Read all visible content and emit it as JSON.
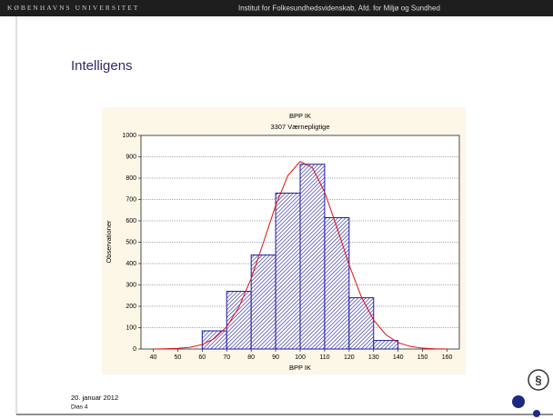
{
  "header": {
    "university": "KØBENHAVNS UNIVERSITET",
    "institute": "Institut for Folkesundhedsvidenskab, Afd. for Miljø og Sundhed"
  },
  "slide_title": "Intelligens",
  "footer": {
    "date": "20. januar 2012",
    "slide": "Dias 4"
  },
  "chart_data": {
    "type": "histogram",
    "title": "BPP IK",
    "subtitle": "3307 Værnepligtige",
    "x_label": "BPP IK",
    "y_label": "Observationer",
    "bins": [
      40,
      50,
      60,
      70,
      80,
      90,
      100,
      110,
      120,
      130,
      140,
      150,
      160
    ],
    "values": [
      0,
      0,
      85,
      270,
      440,
      730,
      865,
      615,
      240,
      40,
      0,
      0
    ],
    "color": "#1a1aa0",
    "curve": {
      "color": "#e01010",
      "x": [
        40,
        45,
        50,
        55,
        60,
        65,
        70,
        75,
        80,
        85,
        90,
        95,
        100,
        105,
        110,
        115,
        120,
        125,
        130,
        135,
        140,
        145,
        150,
        155,
        160
      ],
      "values": [
        0,
        1,
        3,
        8,
        21,
        49,
        104,
        196,
        330,
        499,
        672,
        812,
        878,
        849,
        735,
        570,
        394,
        244,
        136,
        67,
        30,
        12,
        4,
        1,
        0
      ]
    },
    "xlim": [
      35,
      165
    ],
    "xticks": [
      40,
      50,
      60,
      70,
      80,
      90,
      100,
      110,
      120,
      130,
      140,
      150,
      160
    ],
    "ylim": [
      0,
      1000
    ],
    "yticks": [
      0,
      100,
      200,
      300,
      400,
      500,
      600,
      700,
      800,
      900,
      1000
    ],
    "grid": true
  }
}
